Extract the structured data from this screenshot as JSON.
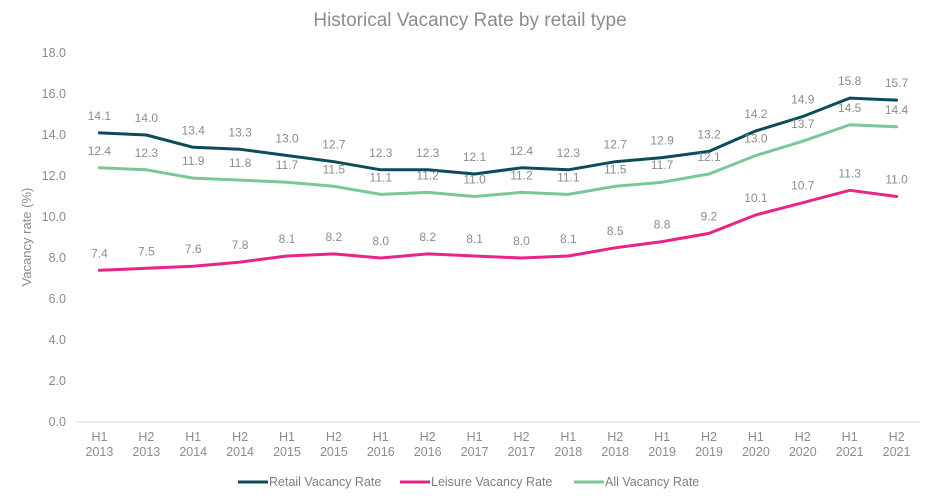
{
  "chart_data": {
    "type": "line",
    "title": "Historical Vacancy Rate by retail type",
    "xlabel": "",
    "ylabel": "Vacancy rate (%)",
    "ylim": [
      0,
      18
    ],
    "yticks": [
      "0.0",
      "2.0",
      "4.0",
      "6.0",
      "8.0",
      "10.0",
      "12.0",
      "14.0",
      "16.0",
      "18.0"
    ],
    "grid": false,
    "legend_position": "bottom",
    "categories": [
      [
        "H1",
        "2013"
      ],
      [
        "H2",
        "2013"
      ],
      [
        "H1",
        "2014"
      ],
      [
        "H2",
        "2014"
      ],
      [
        "H1",
        "2015"
      ],
      [
        "H2",
        "2015"
      ],
      [
        "H1",
        "2016"
      ],
      [
        "H2",
        "2016"
      ],
      [
        "H1",
        "2017"
      ],
      [
        "H2",
        "2017"
      ],
      [
        "H1",
        "2018"
      ],
      [
        "H2",
        "2018"
      ],
      [
        "H1",
        "2019"
      ],
      [
        "H2",
        "2019"
      ],
      [
        "H1",
        "2020"
      ],
      [
        "H2",
        "2020"
      ],
      [
        "H1",
        "2021"
      ],
      [
        "H2",
        "2021"
      ]
    ],
    "series": [
      {
        "name": "Retail Vacancy Rate",
        "color": "#0d4a5c",
        "values": [
          14.1,
          14.0,
          13.4,
          13.3,
          13.0,
          12.7,
          12.3,
          12.3,
          12.1,
          12.4,
          12.3,
          12.7,
          12.9,
          13.2,
          14.2,
          14.9,
          15.8,
          15.7
        ],
        "labels": [
          "14.1",
          "14.0",
          "13.4",
          "13.3",
          "13.0",
          "12.7",
          "12.3",
          "12.3",
          "12.1",
          "12.4",
          "12.3",
          "12.7",
          "12.9",
          "13.2",
          "14.2",
          "14.9",
          "15.8",
          "15.7"
        ]
      },
      {
        "name": "Leisure Vacancy Rate",
        "color": "#e8248a",
        "values": [
          7.4,
          7.5,
          7.6,
          7.8,
          8.1,
          8.2,
          8.0,
          8.2,
          8.1,
          8.0,
          8.1,
          8.5,
          8.8,
          9.2,
          10.1,
          10.7,
          11.3,
          11.0
        ],
        "labels": [
          "7.4",
          "7.5",
          "7.6",
          "7.8",
          "8.1",
          "8.2",
          "8.0",
          "8.2",
          "8.1",
          "8.0",
          "8.1",
          "8.5",
          "8.8",
          "9.2",
          "10.1",
          "10.7",
          "11.3",
          "11.0"
        ]
      },
      {
        "name": "All Vacancy Rate",
        "color": "#7cc79a",
        "values": [
          12.4,
          12.3,
          11.9,
          11.8,
          11.7,
          11.5,
          11.1,
          11.2,
          11.0,
          11.2,
          11.1,
          11.5,
          11.7,
          12.1,
          13.0,
          13.7,
          14.5,
          14.4
        ],
        "labels": [
          "12.4",
          "12.3",
          "11.9",
          "11.8",
          "11.7",
          "11.5",
          "11.1",
          "11.2",
          "11.0",
          "11.2",
          "11.1",
          "11.5",
          "11.7",
          "12.1",
          "13.0",
          "13.7",
          "14.5",
          "14.4"
        ]
      }
    ]
  }
}
